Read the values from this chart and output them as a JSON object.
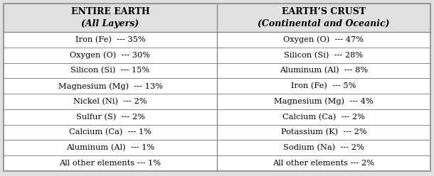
{
  "col1_header1": "ENTIRE EARTH",
  "col1_header2": "(All Layers)",
  "col2_header1": "EARTH’S CRUST",
  "col2_header2": "(Continental and Oceanic)",
  "col1_rows": [
    "Iron (Fe)  --- 35%",
    "Oxygen (O)  --- 30%",
    "Silicon (Si)  --- 15%",
    "Magnesium (Mg)  --- 13%",
    "Nickel (Ni)  --- 2%",
    "Sulfur (S)  --- 2%",
    "Calcium (Ca)  --- 1%",
    "Aluminum (Al)  --- 1%",
    "All other elements --- 1%"
  ],
  "col2_rows": [
    "Oxygen (O)  --- 47%",
    "Silicon (Si)  --- 28%",
    "Aluminum (Al)  --- 8%",
    "Iron (Fe)  --- 5%",
    "Magnesium (Mg)  --- 4%",
    "Calcium (Ca)  --- 2%",
    "Potassium (K)  --- 2%",
    "Sodium (Na)  --- 2%",
    "All other elements --- 2%"
  ],
  "bg_color": "#e0e0e0",
  "cell_bg": "#ffffff",
  "line_color": "#888888",
  "header_fontsize": 9.0,
  "row_fontsize": 8.2,
  "fig_width": 6.1,
  "fig_height": 2.48,
  "dpi": 100
}
